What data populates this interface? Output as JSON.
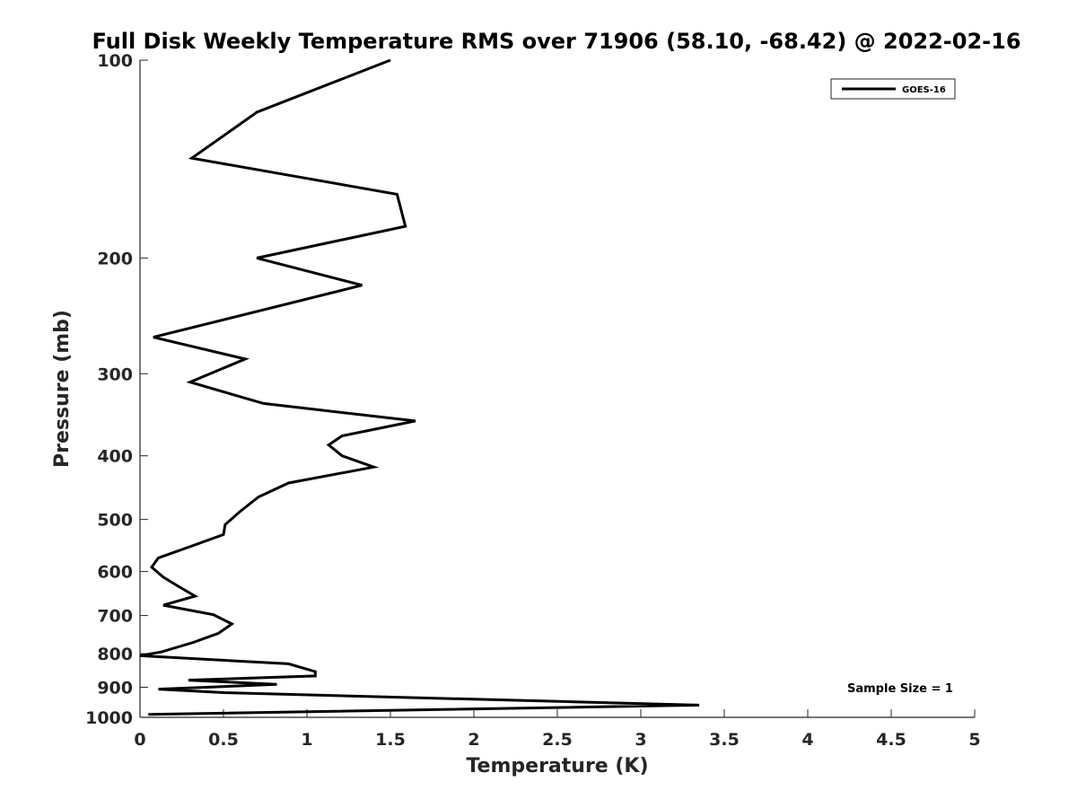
{
  "chart_data": {
    "type": "line",
    "title": "Full Disk Weekly Temperature RMS over 71906 (58.10, -68.42) @ 2022-02-16",
    "xlabel": "Temperature (K)",
    "ylabel": "Pressure (mb)",
    "xlim": [
      0,
      5
    ],
    "ylim": [
      1000,
      100
    ],
    "yscale": "log",
    "x_ticks": [
      0,
      0.5,
      1,
      1.5,
      2,
      2.5,
      3,
      3.5,
      4,
      4.5,
      5
    ],
    "x_tick_labels": [
      "0",
      "0.5",
      "1",
      "1.5",
      "2",
      "2.5",
      "3",
      "3.5",
      "4",
      "4.5",
      "5"
    ],
    "y_ticks": [
      100,
      200,
      300,
      400,
      500,
      600,
      700,
      800,
      900,
      1000
    ],
    "y_tick_labels": [
      "100",
      "200",
      "300",
      "400",
      "500",
      "600",
      "700",
      "800",
      "900",
      "1000"
    ],
    "grid": false,
    "legend": {
      "placement": "top-right",
      "entries": [
        "GOES-16"
      ]
    },
    "annotation": "Sample Size = 1",
    "series": [
      {
        "name": "GOES-16",
        "color": "#000000",
        "points": [
          [
            1.5,
            100
          ],
          [
            0.7,
            120
          ],
          [
            0.31,
            141
          ],
          [
            1.54,
            160
          ],
          [
            1.59,
            179
          ],
          [
            0.7,
            200
          ],
          [
            1.33,
            220
          ],
          [
            0.08,
            264
          ],
          [
            0.63,
            285
          ],
          [
            0.3,
            309
          ],
          [
            0.74,
            333
          ],
          [
            1.65,
            354
          ],
          [
            1.21,
            373
          ],
          [
            1.13,
            385
          ],
          [
            1.21,
            400
          ],
          [
            1.4,
            416
          ],
          [
            0.89,
            440
          ],
          [
            0.71,
            462
          ],
          [
            0.6,
            486
          ],
          [
            0.51,
            509
          ],
          [
            0.5,
            527
          ],
          [
            0.3,
            550
          ],
          [
            0.11,
            572
          ],
          [
            0.07,
            591
          ],
          [
            0.14,
            612
          ],
          [
            0.23,
            632
          ],
          [
            0.33,
            654
          ],
          [
            0.14,
            675
          ],
          [
            0.44,
            698
          ],
          [
            0.55,
            721
          ],
          [
            0.47,
            745
          ],
          [
            0.32,
            769
          ],
          [
            0.13,
            795
          ],
          [
            0.0,
            806
          ],
          [
            0.89,
            829
          ],
          [
            1.05,
            852
          ],
          [
            1.05,
            865
          ],
          [
            0.29,
            878
          ],
          [
            0.82,
            891
          ],
          [
            0.11,
            906
          ],
          [
            0.5,
            917
          ],
          [
            3.35,
            958
          ],
          [
            0.05,
            990
          ]
        ]
      }
    ]
  }
}
